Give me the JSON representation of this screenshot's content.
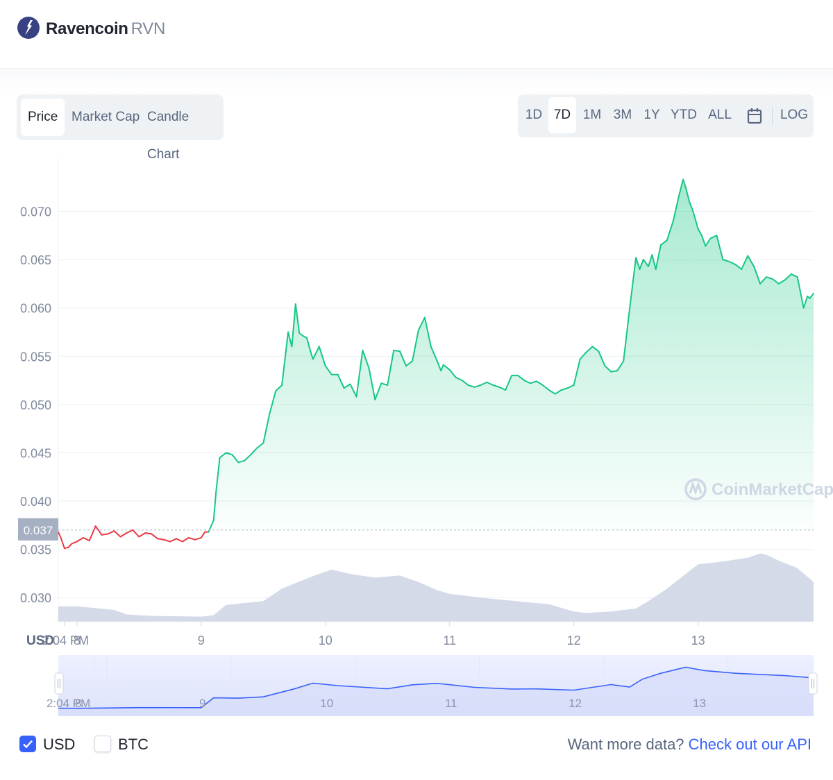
{
  "header": {
    "coin_name": "Ravencoin",
    "coin_symbol": "RVN",
    "logo_icon": "raven-logo-icon"
  },
  "tabs": [
    {
      "label": "Price",
      "active": true
    },
    {
      "label": "Market Cap",
      "active": false
    },
    {
      "label": "Candle Chart",
      "active": false
    }
  ],
  "ranges": [
    {
      "label": "1D",
      "active": false
    },
    {
      "label": "7D",
      "active": true
    },
    {
      "label": "1M",
      "active": false
    },
    {
      "label": "3M",
      "active": false
    },
    {
      "label": "1Y",
      "active": false
    },
    {
      "label": "YTD",
      "active": false
    },
    {
      "label": "ALL",
      "active": false
    }
  ],
  "range_calendar_icon": "calendar-icon",
  "range_log": "LOG",
  "watermark": "CoinMarketCap",
  "footer": {
    "usd_label": "USD",
    "btc_label": "BTC",
    "api_prefix": "Want more data?",
    "api_link": "Check out our API"
  },
  "colors": {
    "up": "#16c784",
    "down": "#ea3943",
    "accent": "#3861fb",
    "volume": "#cfd6e4"
  },
  "chart_data": {
    "type": "area",
    "title": "",
    "ylabel": "USD",
    "ylim": [
      0.0275,
      0.0755
    ],
    "yticks": [
      0.03,
      0.035,
      0.04,
      0.045,
      0.05,
      0.055,
      0.06,
      0.065,
      0.07
    ],
    "ytick_labels": [
      "0.030",
      "0.035",
      "0.040",
      "0.045",
      "0.050",
      "0.055",
      "0.060",
      "0.065",
      "0.070"
    ],
    "xlim": [
      7.85,
      13.93
    ],
    "xticks": [
      7.9,
      8,
      9,
      10,
      11,
      12,
      13
    ],
    "xtick_labels": [
      "2:04 PM",
      "8",
      "9",
      "10",
      "11",
      "12",
      "13"
    ],
    "reference_price": 0.037,
    "reference_label": "0.037",
    "grid": true,
    "series": [
      {
        "x": [
          7.85,
          7.87,
          7.9,
          7.93,
          7.96,
          8.0,
          8.05,
          8.1,
          8.15,
          8.2,
          8.25,
          8.3,
          8.35,
          8.4,
          8.45,
          8.5,
          8.55,
          8.6,
          8.65,
          8.7,
          8.75,
          8.8,
          8.85,
          8.9,
          8.95,
          9.0,
          9.03,
          9.06,
          9.1,
          9.12,
          9.15,
          9.2,
          9.25,
          9.3,
          9.35,
          9.4,
          9.45,
          9.5,
          9.55,
          9.6,
          9.65,
          9.7,
          9.73,
          9.76,
          9.79,
          9.82,
          9.85,
          9.88,
          9.9,
          9.95,
          10.0,
          10.05,
          10.1,
          10.15,
          10.2,
          10.25,
          10.3,
          10.35,
          10.4,
          10.45,
          10.5,
          10.55,
          10.6,
          10.65,
          10.7,
          10.75,
          10.8,
          10.85,
          10.9,
          10.93,
          10.95,
          11.0,
          11.05,
          11.1,
          11.15,
          11.2,
          11.25,
          11.3,
          11.35,
          11.4,
          11.45,
          11.5,
          11.55,
          11.6,
          11.65,
          11.7,
          11.75,
          11.8,
          11.85,
          11.9,
          11.95,
          12.0,
          12.05,
          12.1,
          12.15,
          12.2,
          12.25,
          12.3,
          12.35,
          12.4,
          12.45,
          12.5,
          12.53,
          12.56,
          12.6,
          12.63,
          12.66,
          12.7,
          12.75,
          12.8,
          12.85,
          12.88,
          12.9,
          12.93,
          12.96,
          13.0,
          13.03,
          13.06,
          13.1,
          13.15,
          13.2,
          13.25,
          13.3,
          13.35,
          13.4,
          13.45,
          13.5,
          13.55,
          13.6,
          13.65,
          13.7,
          13.75,
          13.8,
          13.85,
          13.88,
          13.9,
          13.93
        ],
        "y": [
          0.0368,
          0.0362,
          0.0351,
          0.0352,
          0.0356,
          0.0358,
          0.0362,
          0.0359,
          0.0374,
          0.0365,
          0.0366,
          0.0369,
          0.0363,
          0.0367,
          0.037,
          0.0363,
          0.0367,
          0.0366,
          0.0361,
          0.036,
          0.0358,
          0.0361,
          0.0358,
          0.0362,
          0.036,
          0.0362,
          0.0368,
          0.0368,
          0.038,
          0.041,
          0.0445,
          0.045,
          0.0448,
          0.044,
          0.0442,
          0.0448,
          0.0455,
          0.046,
          0.049,
          0.0514,
          0.052,
          0.0575,
          0.056,
          0.0604,
          0.0574,
          0.0571,
          0.0569,
          0.0555,
          0.0547,
          0.056,
          0.054,
          0.0531,
          0.0531,
          0.0517,
          0.0521,
          0.0508,
          0.0556,
          0.0538,
          0.0505,
          0.0522,
          0.052,
          0.0556,
          0.0555,
          0.054,
          0.0545,
          0.0577,
          0.059,
          0.056,
          0.0545,
          0.0535,
          0.0541,
          0.0536,
          0.0528,
          0.0525,
          0.052,
          0.0518,
          0.052,
          0.0523,
          0.052,
          0.0518,
          0.0515,
          0.053,
          0.053,
          0.0525,
          0.0522,
          0.0524,
          0.052,
          0.0515,
          0.0511,
          0.0515,
          0.0517,
          0.052,
          0.0547,
          0.0554,
          0.056,
          0.0555,
          0.054,
          0.0534,
          0.0535,
          0.0545,
          0.06,
          0.0652,
          0.064,
          0.065,
          0.0643,
          0.0655,
          0.064,
          0.0665,
          0.067,
          0.069,
          0.0718,
          0.0733,
          0.0725,
          0.071,
          0.07,
          0.0682,
          0.0675,
          0.0664,
          0.0672,
          0.0675,
          0.065,
          0.0648,
          0.0645,
          0.064,
          0.0654,
          0.0643,
          0.0625,
          0.0632,
          0.063,
          0.0625,
          0.0629,
          0.0635,
          0.0632,
          0.06,
          0.0612,
          0.061,
          0.0615
        ]
      }
    ],
    "volume": {
      "x": [
        7.85,
        8.0,
        8.3,
        8.4,
        8.6,
        9.0,
        9.1,
        9.2,
        9.5,
        9.65,
        9.75,
        9.9,
        10.05,
        10.2,
        10.4,
        10.6,
        10.75,
        10.9,
        11.0,
        11.3,
        11.6,
        11.8,
        12.0,
        12.1,
        12.3,
        12.5,
        12.6,
        12.75,
        12.9,
        13.0,
        13.2,
        13.4,
        13.5,
        13.55,
        13.65,
        13.8,
        13.93
      ],
      "y": [
        21,
        21,
        16,
        10,
        8,
        7,
        9,
        23,
        28,
        45,
        52,
        62,
        71,
        65,
        60,
        63,
        54,
        43,
        38,
        32,
        27,
        24,
        14,
        12,
        14,
        18,
        28,
        45,
        65,
        78,
        82,
        87,
        93,
        91,
        83,
        73,
        54
      ]
    },
    "navigator": {
      "x": [
        7.85,
        8.0,
        8.5,
        9.0,
        9.1,
        9.3,
        9.5,
        9.75,
        9.9,
        10.1,
        10.5,
        10.7,
        10.9,
        11.2,
        11.5,
        11.7,
        12.0,
        12.3,
        12.45,
        12.55,
        12.7,
        12.9,
        13.05,
        13.3,
        13.5,
        13.7,
        13.93
      ],
      "y": [
        0.036,
        0.0359,
        0.0365,
        0.0364,
        0.0446,
        0.0443,
        0.0454,
        0.052,
        0.0568,
        0.0547,
        0.0521,
        0.0554,
        0.0566,
        0.0533,
        0.0519,
        0.052,
        0.051,
        0.0556,
        0.0535,
        0.06,
        0.065,
        0.07,
        0.0672,
        0.065,
        0.064,
        0.063,
        0.0612
      ]
    }
  }
}
